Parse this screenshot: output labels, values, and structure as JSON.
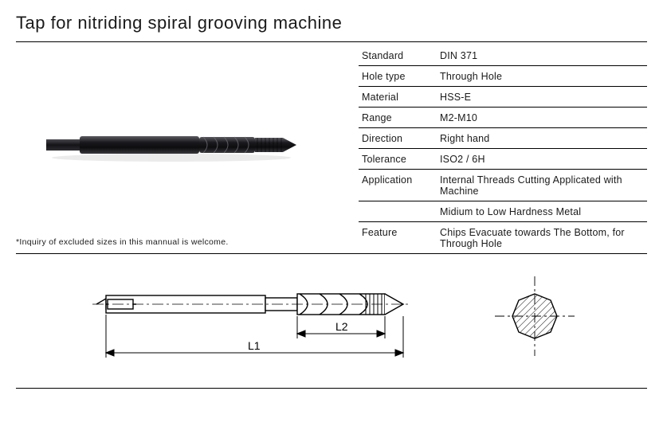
{
  "title": "Tap for nitriding spiral grooving machine",
  "note": "*Inquiry of excluded sizes in this mannual is welcome.",
  "specs": [
    {
      "key": "Standard",
      "val": "DIN 371"
    },
    {
      "key": "Hole type",
      "val": "Through Hole"
    },
    {
      "key": "Material",
      "val": "HSS-E"
    },
    {
      "key": "Range",
      "val": "M2-M10"
    },
    {
      "key": "Direction",
      "val": "Right hand"
    },
    {
      "key": "Tolerance",
      "val": "ISO2 / 6H"
    },
    {
      "key": "Application",
      "val": "Internal Threads Cutting Applicated with Machine"
    },
    {
      "key": "",
      "val": "Midium to Low Hardness Metal"
    },
    {
      "key": "Feature",
      "val": "Chips Evacuate towards The Bottom, for Through Hole"
    }
  ],
  "diagram": {
    "labels": {
      "l1": "L1",
      "l2": "L2"
    },
    "label_fontsize": 14,
    "stroke": "#000000",
    "hatch_stroke": "#000000",
    "hatch_angle": 45,
    "bg": "#ffffff"
  },
  "photo": {
    "body_color": "#27272b",
    "dark": "#0d0d0f",
    "highlight": "#6a6a71",
    "shadow": "#c0c0c0"
  },
  "colors": {
    "text": "#1a1a1a",
    "rule": "#000000",
    "bg": "#ffffff"
  }
}
